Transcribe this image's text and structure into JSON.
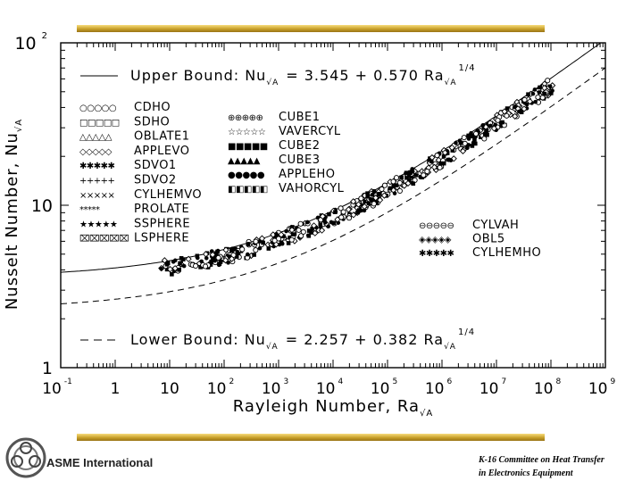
{
  "chart_data": {
    "type": "scatter",
    "xlabel": "Rayleigh Number, Ra",
    "xlabel_sub": "√A",
    "ylabel": "Nusselt Number, Nu",
    "ylabel_sub": "√A",
    "x_scale": "log",
    "y_scale": "log",
    "xlim": [
      0.1,
      1000000000
    ],
    "ylim": [
      1,
      100
    ],
    "x_ticks": [
      {
        "value": 0.1,
        "base": "10",
        "exp": "-1"
      },
      {
        "value": 1,
        "base": "1",
        "exp": ""
      },
      {
        "value": 10,
        "base": "10",
        "exp": ""
      },
      {
        "value": 100,
        "base": "10",
        "exp": "2"
      },
      {
        "value": 1000,
        "base": "10",
        "exp": "3"
      },
      {
        "value": 10000,
        "base": "10",
        "exp": "4"
      },
      {
        "value": 100000,
        "base": "10",
        "exp": "5"
      },
      {
        "value": 1000000,
        "base": "10",
        "exp": "6"
      },
      {
        "value": 10000000,
        "base": "10",
        "exp": "7"
      },
      {
        "value": 100000000,
        "base": "10",
        "exp": "8"
      },
      {
        "value": 1000000000,
        "base": "10",
        "exp": "9"
      }
    ],
    "y_ticks": [
      {
        "value": 1,
        "base": "1",
        "exp": ""
      },
      {
        "value": 10,
        "base": "10",
        "exp": ""
      },
      {
        "value": 100,
        "base": "10",
        "exp": "2"
      }
    ],
    "upper_bound": {
      "label_prefix": "Upper Bound: Nu",
      "label_eq": "= 3.545 + 0.570 Ra",
      "sub": "√A",
      "exp": "1/4",
      "intercept": 3.545,
      "coef": 0.57,
      "power": 0.25,
      "style": "solid"
    },
    "lower_bound": {
      "label_prefix": "Lower Bound: Nu",
      "label_eq": "= 2.257 + 0.382 Ra",
      "sub": "√A",
      "exp": "1/4",
      "intercept": 2.257,
      "coef": 0.382,
      "power": 0.25,
      "style": "dashed"
    },
    "legend_left": [
      {
        "name": "CDHO",
        "marker": "circle-open",
        "key": "○○○○○"
      },
      {
        "name": "SDHO",
        "marker": "square-open",
        "key": "□□□□□"
      },
      {
        "name": "OBLATE1",
        "marker": "triangle-open",
        "key": "△△△△△"
      },
      {
        "name": "APPLEVO",
        "marker": "diamond-open",
        "key": "◇◇◇◇◇"
      },
      {
        "name": "SDVO1",
        "marker": "star-bold",
        "key": "✱✱✱✱✱"
      },
      {
        "name": "SDVO2",
        "marker": "plus",
        "key": "+++++"
      },
      {
        "name": "CYLHEMVO",
        "marker": "cross",
        "key": "×××××"
      },
      {
        "name": "PROLATE",
        "marker": "asterisk",
        "key": "*****"
      },
      {
        "name": "SSPHERE",
        "marker": "star-filled",
        "key": "★★★★★"
      },
      {
        "name": "LSPHERE",
        "marker": "cross-box",
        "key": "⌧⌧⌧⌧⌧"
      }
    ],
    "legend_middle": [
      {
        "name": "CUBE1",
        "marker": "circle-plus",
        "key": "⊕⊕⊕⊕⊕"
      },
      {
        "name": "VAVERCYL",
        "marker": "star-open",
        "key": "☆☆☆☆☆"
      },
      {
        "name": "CUBE2",
        "marker": "square-filled",
        "key": "■■■■■"
      },
      {
        "name": "CUBE3",
        "marker": "triangle-filled",
        "key": "▲▲▲▲▲"
      },
      {
        "name": "APPLEHO",
        "marker": "circle-filled",
        "key": "●●●●●"
      },
      {
        "name": "VAHORCYL",
        "marker": "square-half",
        "key": "◧◧◧◧◧"
      }
    ],
    "legend_right": [
      {
        "name": "CYLVAH",
        "marker": "circle-bar",
        "key": "⊖⊖⊖⊖⊖"
      },
      {
        "name": "OBL5",
        "marker": "diamond-dot",
        "key": "◈◈◈◈◈"
      },
      {
        "name": "CYLHEMHO",
        "marker": "asterisk-bold",
        "key": "✱✱✱✱✱"
      }
    ],
    "data_band": {
      "x_range": [
        7,
        120000000
      ],
      "description": "points cluster between the bounds, following 0.52 Ra^(1/4) + 3.3",
      "intercept": 3.3,
      "coef": 0.52
    },
    "grid": false,
    "legend_position": "inside-left"
  },
  "footer": {
    "org": "ASME International",
    "committee_line1": "K-16 Committee on Heat Transfer",
    "committee_line2": "in Electronics Equipment"
  },
  "colors": {
    "gold_bar": "#c8a02a",
    "ink": "#000000",
    "background": "#ffffff"
  }
}
